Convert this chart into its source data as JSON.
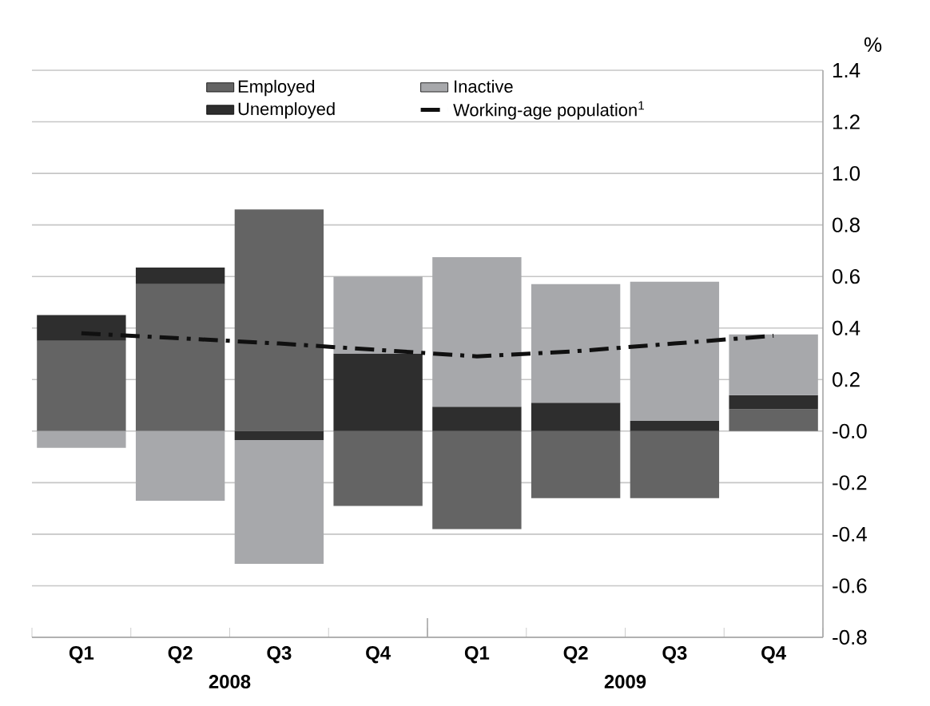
{
  "chart_data": {
    "type": "bar",
    "stacked": true,
    "ylabel": "%",
    "categories": [
      "Q1",
      "Q2",
      "Q3",
      "Q4",
      "Q1",
      "Q2",
      "Q3",
      "Q4"
    ],
    "annotations": [
      "2008",
      "2009"
    ],
    "series": [
      {
        "name": "Employed",
        "color": "#646464",
        "values": [
          0.35,
          0.57,
          0.86,
          -0.29,
          -0.38,
          -0.26,
          -0.26,
          0.085
        ]
      },
      {
        "name": "Unemployed",
        "color": "#2e2e2e",
        "values": [
          0.1,
          0.065,
          -0.035,
          0.3,
          0.095,
          0.11,
          0.04,
          0.055
        ]
      },
      {
        "name": "Inactive",
        "color": "#a7a8ab",
        "values": [
          -0.065,
          -0.27,
          -0.48,
          0.3,
          0.58,
          0.46,
          0.54,
          0.235
        ]
      },
      {
        "name": "Working-age population$^{1}$",
        "type": "line",
        "line_style": "dashdot",
        "color": "#101010",
        "values": [
          0.38,
          0.36,
          0.34,
          0.315,
          0.29,
          0.31,
          0.34,
          0.37
        ]
      }
    ],
    "ylim": [
      -0.8,
      1.4
    ],
    "yticks": [
      -0.8,
      -0.6,
      -0.4,
      -0.2,
      {
        "value": 0,
        "label": "-0.0"
      },
      0.2,
      0.4,
      0.6,
      0.8,
      {
        "value": 1,
        "label": "1.0"
      },
      1.2,
      1.4
    ],
    "grid": "y",
    "legend": "top",
    "marker": "none"
  }
}
